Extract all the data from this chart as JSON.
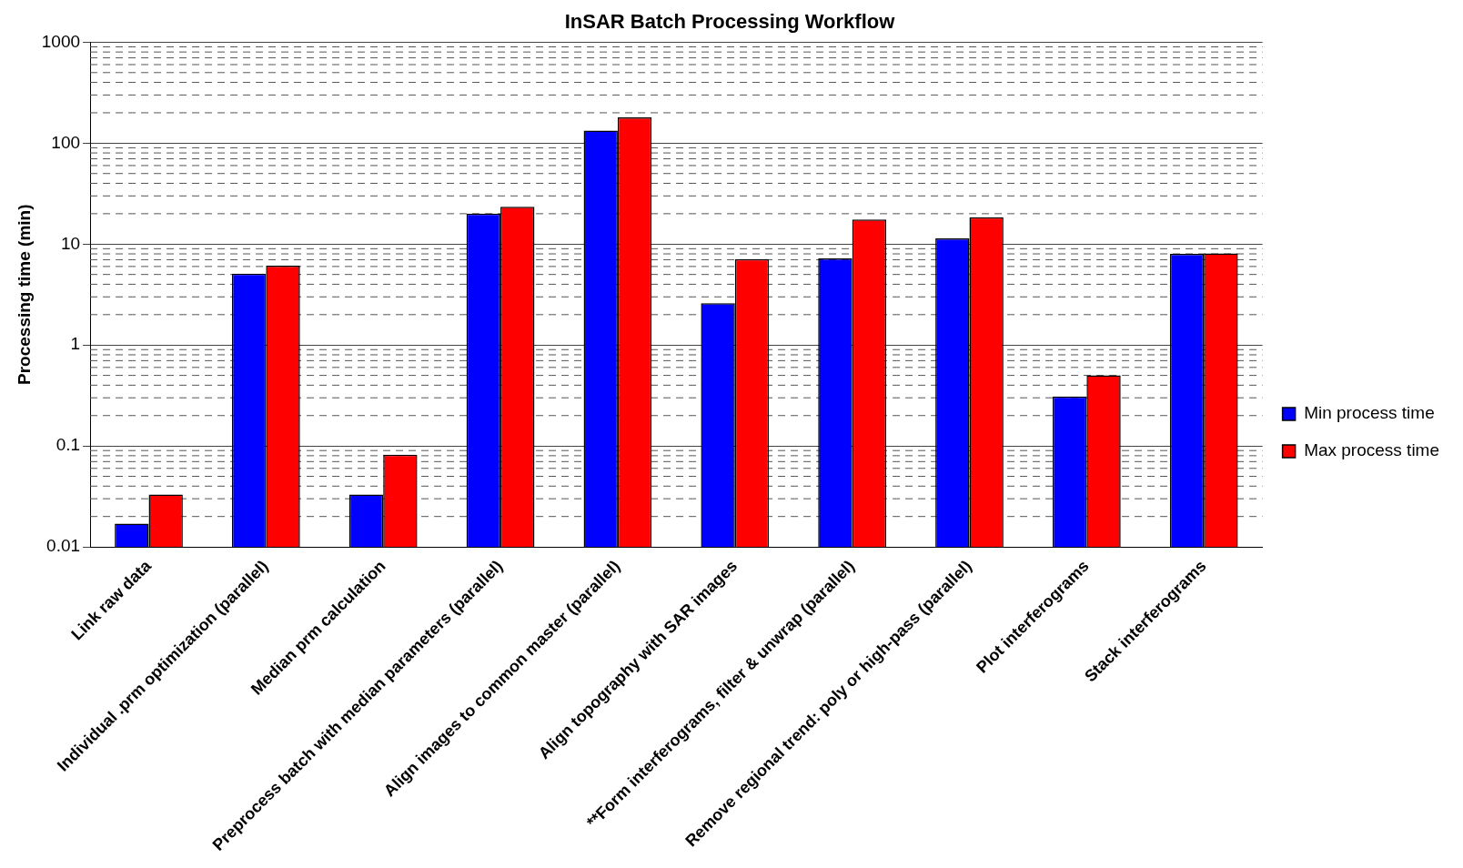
{
  "chart_data": {
    "type": "bar",
    "title": "InSAR Batch Processing Workflow",
    "ylabel": "Processing time (min)",
    "categories": [
      "Link raw data",
      "Individual .prm optimization (parallel)",
      "Median prm calculation",
      "Preprocess batch with median parameters (parallel)",
      "Align images to common master (parallel)",
      "Align topography with SAR images",
      "**Form interferograms, filter & unwrap (parallel)",
      "Remove regional trend: poly or high-pass (parallel)",
      "Plot interferograms",
      "Stack interferograms"
    ],
    "series": [
      {
        "name": "Min process time",
        "color": "#0000ff",
        "values": [
          0.017,
          5.1,
          0.033,
          20,
          133,
          2.6,
          7.2,
          11.4,
          0.31,
          8.0
        ]
      },
      {
        "name": "Max process time",
        "color": "#ff0000",
        "values": [
          0.033,
          6.1,
          0.082,
          23.4,
          180,
          7.1,
          17.5,
          18.5,
          0.5,
          8.1
        ]
      }
    ],
    "log": true,
    "ylim": [
      0.01,
      1000
    ],
    "yticks": [
      0.01,
      0.1,
      1,
      10,
      100,
      1000
    ],
    "grid": "y",
    "legend": "right"
  }
}
